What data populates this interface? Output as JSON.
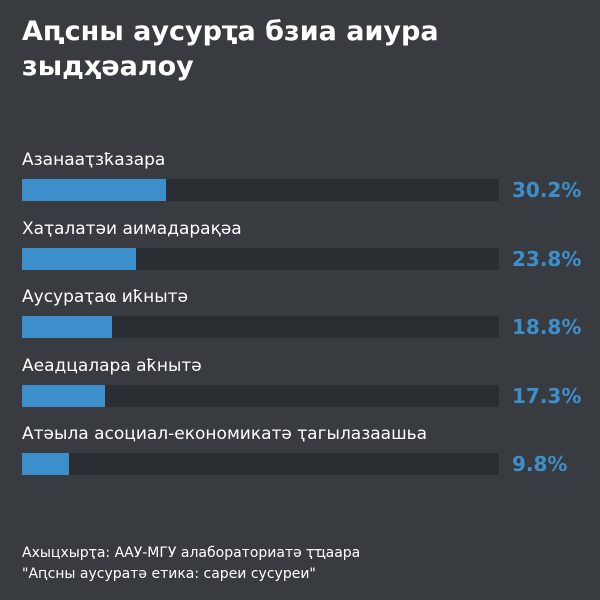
{
  "chart_data": {
    "type": "bar",
    "title": "Аԥсны аусурҭа бзиа аиура зыдҳәалоу",
    "categories": [
      "Азанааҭзҟазара",
      "Хаҭалатәи аимадарақәа",
      "Аусураҭаҩ иҟнытә",
      "Аеадцалара аҟнытә",
      "Атәыла асоциал-економикатә ҭагылазаашьа"
    ],
    "values": [
      30.2,
      23.8,
      18.8,
      17.3,
      9.8
    ],
    "value_labels": [
      "30.2%",
      "23.8%",
      "18.8%",
      "17.3%",
      "9.8%"
    ],
    "unit": "%",
    "xlim": [
      0,
      100
    ],
    "bar_color": "#3d8fcb",
    "track_color": "#2a2d31",
    "background": "#383b40"
  },
  "source": {
    "line1": "Ахыцхырҭа: ААУ-МГУ алабораториатә ҭҵаара",
    "line2": "\"Аԥсны аусуратә етика: сареи сусуреи\""
  }
}
